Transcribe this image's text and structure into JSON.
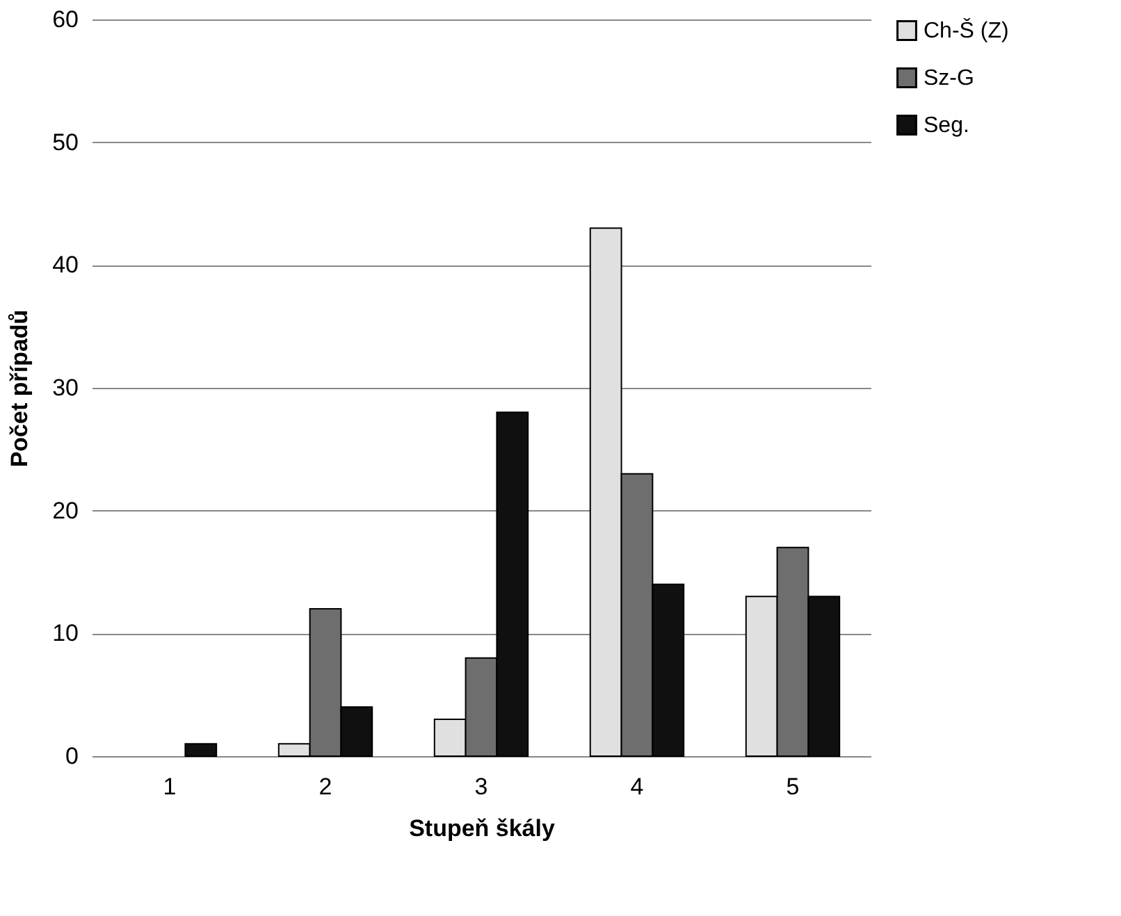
{
  "chart_data": {
    "type": "bar",
    "xlabel": "Stupeň škály",
    "ylabel": "Počet případů",
    "categories": [
      "1",
      "2",
      "3",
      "4",
      "5"
    ],
    "series": [
      {
        "name": "Ch-Š (Z)",
        "color": "#e0e0e0",
        "values": [
          null,
          1,
          3,
          43,
          13
        ]
      },
      {
        "name": "Sz-G",
        "color": "#6e6e6e",
        "values": [
          null,
          12,
          8,
          23,
          17
        ]
      },
      {
        "name": "Seg.",
        "color": "#101010",
        "values": [
          1,
          4,
          28,
          14,
          13
        ]
      }
    ],
    "ylim": [
      0,
      60
    ],
    "yticks": [
      0,
      10,
      20,
      30,
      40,
      50,
      60
    ],
    "grid": "y",
    "legend": "right"
  }
}
